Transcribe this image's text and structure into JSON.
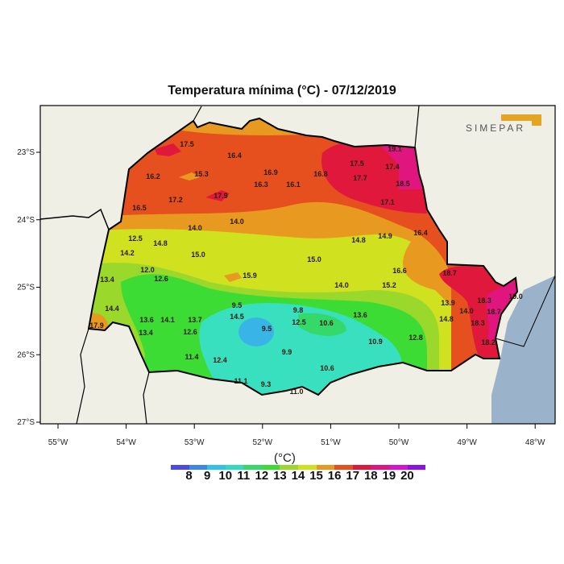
{
  "title": "Temperatura mínima (°C) - 07/12/2019",
  "logo_text": "SIMEPAR",
  "axes": {
    "lat_ticks": [
      "23°S",
      "24°S",
      "25°S",
      "26°S",
      "27°S"
    ],
    "lon_ticks": [
      "55°W",
      "54°W",
      "53°W",
      "52°W",
      "51°W",
      "50°W",
      "49°W",
      "48°W"
    ]
  },
  "colorbar": {
    "unit": "(°C)",
    "ticks": [
      "8",
      "9",
      "10",
      "11",
      "12",
      "13",
      "14",
      "15",
      "16",
      "17",
      "18",
      "19",
      "20"
    ],
    "colors": [
      "#4c4ce0",
      "#3f86e6",
      "#30c4e6",
      "#30dcc0",
      "#35d96a",
      "#3ddc35",
      "#9ad82c",
      "#cfe11f",
      "#e89a20",
      "#e5501e",
      "#e0183c",
      "#e0157e",
      "#d813d0",
      "#8a14e8"
    ]
  },
  "colors": {
    "land": "#f0efe6",
    "ocean": "#9ab3cb",
    "border": "#000000"
  },
  "stations": [
    "17.5",
    "16.4",
    "15.3",
    "16.2",
    "16.9",
    "16.3",
    "16.1",
    "16.8",
    "17.5",
    "17.7",
    "17.4",
    "18.5",
    "17.1",
    "17.2",
    "17.9",
    "16.5",
    "14.0",
    "14.0",
    "12.5",
    "14.8",
    "14.2",
    "15.0",
    "14.8",
    "14.9",
    "16.4",
    "15.0",
    "16.6",
    "18.7",
    "12.0",
    "12.6",
    "13.4",
    "15.9",
    "14.0",
    "15.2",
    "14.4",
    "9.5",
    "14.5",
    "9.8",
    "13.6",
    "13.6",
    "14.1",
    "13.7",
    "12.5",
    "10.6",
    "17.9",
    "13.4",
    "12.6",
    "9.5",
    "13.9",
    "14.0",
    "14.8",
    "18.3",
    "18.7",
    "18.3",
    "19.0",
    "12.8",
    "10.9",
    "9.9",
    "11.4",
    "12.4",
    "10.6",
    "18.2",
    "11.1",
    "9.3",
    "11.0",
    "19.1"
  ]
}
